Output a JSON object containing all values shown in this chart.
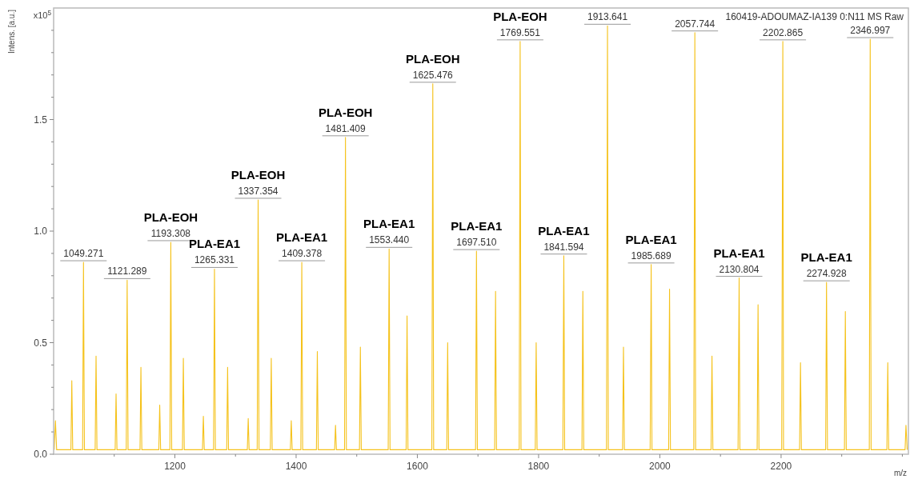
{
  "chart_data": {
    "type": "line",
    "xlabel": "m/z",
    "ylabel": "Intens. [a.u.]",
    "xlim": [
      1000,
      2410
    ],
    "ylim": [
      0,
      2.0
    ],
    "xticks": [
      {
        "value": 1100,
        "label": null
      },
      1200,
      {
        "value": 1300,
        "label": null
      },
      1400,
      {
        "value": 1500,
        "label": null
      },
      1600,
      {
        "value": 1700,
        "label": null
      },
      1800,
      {
        "value": 1900,
        "label": null
      },
      2000,
      {
        "value": 2100,
        "label": null
      },
      2200,
      {
        "value": 2300,
        "label": null
      },
      {
        "value": 2400,
        "label": null
      }
    ],
    "yticks": [
      {
        "value": 0,
        "label": "0.0"
      },
      {
        "value": 0.1,
        "label": null
      },
      {
        "value": 0.2,
        "label": null
      },
      {
        "value": 0.3,
        "label": null
      },
      {
        "value": 0.4,
        "label": null
      },
      0.5,
      {
        "value": 0.6,
        "label": null
      },
      {
        "value": 0.7,
        "label": null
      },
      {
        "value": 0.8,
        "label": null
      },
      {
        "value": 0.9,
        "label": null
      },
      {
        "value": 1,
        "label": "1.0"
      },
      {
        "value": 1.1,
        "label": null
      },
      {
        "value": 1.2,
        "label": null
      },
      {
        "value": 1.3,
        "label": null
      },
      {
        "value": 1.4,
        "label": null
      },
      1.5,
      {
        "value": 1.6,
        "label": null
      },
      {
        "value": 1.7,
        "label": null
      },
      {
        "value": 1.8,
        "label": null
      },
      {
        "value": 1.9,
        "label": null
      }
    ],
    "grid": false,
    "marker": "none",
    "line_style": "solid",
    "series": [
      {
        "color": "#f5c21b",
        "x": [
          1001,
          1003,
          1005,
          1028.5,
          1030,
          1031.5,
          1047.8,
          1049.271,
          1050.8,
          1068.5,
          1070,
          1071.5,
          1101.5,
          1103,
          1104.5,
          1119.8,
          1121.289,
          1122.8,
          1142.5,
          1144,
          1145.5,
          1173.5,
          1175,
          1176.5,
          1191.8,
          1193.308,
          1194.8,
          1212.5,
          1214,
          1215.5,
          1245.5,
          1247,
          1248.5,
          1263.8,
          1265.331,
          1266.8,
          1285.5,
          1287,
          1288.5,
          1319.5,
          1321,
          1322.5,
          1335.8,
          1337.354,
          1338.8,
          1357.5,
          1359,
          1360.5,
          1390.5,
          1392,
          1393.5,
          1407.8,
          1409.378,
          1410.8,
          1433.5,
          1435,
          1436.5,
          1463.5,
          1465,
          1466.5,
          1479.9,
          1481.409,
          1482.9,
          1504.5,
          1506,
          1507.5,
          1551.9,
          1553.44,
          1554.9,
          1581.5,
          1583,
          1584.5,
          1623.9,
          1625.476,
          1626.9,
          1648.5,
          1650,
          1651.5,
          1696,
          1697.51,
          1699,
          1727.5,
          1729,
          1730.5,
          1768,
          1769.551,
          1771,
          1794.5,
          1796,
          1797.5,
          1840,
          1841.594,
          1843,
          1871.5,
          1873,
          1874.5,
          1912,
          1913.641,
          1915,
          1938.5,
          1940,
          1941.5,
          1984,
          1985.689,
          1987,
          2014.5,
          2016,
          2017.5,
          2056,
          2057.744,
          2059,
          2084.5,
          2086,
          2087.5,
          2129,
          2130.804,
          2132,
          2160.5,
          2162,
          2163.5,
          2201,
          2202.865,
          2204,
          2230.5,
          2232,
          2233.5,
          2273.5,
          2274.928,
          2276.5,
          2304.5,
          2306,
          2307.5,
          2345.5,
          2346.997,
          2348.5,
          2374.5,
          2376,
          2377.5,
          2404.5,
          2406,
          2408
        ],
        "values": [
          0.02,
          0.15,
          0.02,
          0.02,
          0.33,
          0.02,
          0.02,
          0.86,
          0.02,
          0.02,
          0.44,
          0.02,
          0.02,
          0.27,
          0.02,
          0.02,
          0.78,
          0.02,
          0.02,
          0.39,
          0.02,
          0.02,
          0.22,
          0.02,
          0.02,
          0.95,
          0.02,
          0.02,
          0.43,
          0.02,
          0.02,
          0.17,
          0.02,
          0.02,
          0.83,
          0.02,
          0.02,
          0.39,
          0.02,
          0.02,
          0.16,
          0.02,
          0.02,
          1.14,
          0.02,
          0.02,
          0.43,
          0.02,
          0.02,
          0.15,
          0.02,
          0.02,
          0.86,
          0.02,
          0.02,
          0.46,
          0.02,
          0.02,
          0.13,
          0.02,
          0.02,
          1.42,
          0.02,
          0.02,
          0.48,
          0.02,
          0.02,
          0.92,
          0.02,
          0.02,
          0.62,
          0.02,
          0.02,
          1.66,
          0.02,
          0.02,
          0.5,
          0.02,
          0.02,
          0.91,
          0.02,
          0.02,
          0.73,
          0.02,
          0.02,
          1.85,
          0.02,
          0.02,
          0.5,
          0.02,
          0.02,
          0.89,
          0.02,
          0.02,
          0.73,
          0.02,
          0.02,
          1.92,
          0.02,
          0.02,
          0.48,
          0.02,
          0.02,
          0.85,
          0.02,
          0.02,
          0.74,
          0.02,
          0.02,
          1.89,
          0.02,
          0.02,
          0.44,
          0.02,
          0.02,
          0.79,
          0.02,
          0.02,
          0.67,
          0.02,
          0.02,
          1.85,
          0.02,
          0.02,
          0.41,
          0.02,
          0.02,
          0.77,
          0.02,
          0.02,
          0.64,
          0.02,
          0.02,
          1.86,
          0.02,
          0.02,
          0.41,
          0.02,
          0.02,
          0.13,
          0.02
        ]
      }
    ],
    "annotations": [
      "x10$^{5}$",
      "160419-ADOUMAZ-IA139 0:N11 MS Raw",
      {
        "text": "1049.271",
        "x": 1049.271,
        "y": 0.86
      },
      {
        "text": "1121.289",
        "x": 1121.289,
        "y": 0.78
      },
      {
        "text": "1193.308",
        "x": 1193.308,
        "y": 0.95
      },
      {
        "text": "PLA-EOH",
        "x": 1193.308,
        "y": 0.95
      },
      {
        "text": "1265.331",
        "x": 1265.331,
        "y": 0.83
      },
      {
        "text": "PLA-EA1",
        "x": 1265.331,
        "y": 0.83
      },
      {
        "text": "1337.354",
        "x": 1337.354,
        "y": 1.14
      },
      {
        "text": "PLA-EOH",
        "x": 1337.354,
        "y": 1.14
      },
      {
        "text": "1409.378",
        "x": 1409.378,
        "y": 0.86
      },
      {
        "text": "PLA-EA1",
        "x": 1409.378,
        "y": 0.86
      },
      {
        "text": "1481.409",
        "x": 1481.409,
        "y": 1.42
      },
      {
        "text": "PLA-EOH",
        "x": 1481.409,
        "y": 1.42
      },
      {
        "text": "1553.440",
        "x": 1553.44,
        "y": 0.92
      },
      {
        "text": "PLA-EA1",
        "x": 1553.44,
        "y": 0.92
      },
      {
        "text": "1625.476",
        "x": 1625.476,
        "y": 1.66
      },
      {
        "text": "PLA-EOH",
        "x": 1625.476,
        "y": 1.66
      },
      {
        "text": "1697.510",
        "x": 1697.51,
        "y": 0.91
      },
      {
        "text": "PLA-EA1",
        "x": 1697.51,
        "y": 0.91
      },
      {
        "text": "1769.551",
        "x": 1769.551,
        "y": 1.85
      },
      {
        "text": "PLA-EOH",
        "x": 1769.551,
        "y": 1.85
      },
      {
        "text": "1841.594",
        "x": 1841.594,
        "y": 0.89
      },
      {
        "text": "PLA-EA1",
        "x": 1841.594,
        "y": 0.89
      },
      {
        "text": "1913.641",
        "x": 1913.641,
        "y": 1.92
      },
      {
        "text": "1985.689",
        "x": 1985.689,
        "y": 0.85
      },
      {
        "text": "PLA-EA1",
        "x": 1985.689,
        "y": 0.85
      },
      {
        "text": "2057.744",
        "x": 2057.744,
        "y": 1.89
      },
      {
        "text": "2130.804",
        "x": 2130.804,
        "y": 0.79
      },
      {
        "text": "PLA-EA1",
        "x": 2130.804,
        "y": 0.79
      },
      {
        "text": "2202.865",
        "x": 2202.865,
        "y": 1.85
      },
      {
        "text": "2274.928",
        "x": 2274.928,
        "y": 0.77
      },
      {
        "text": "PLA-EA1",
        "x": 2274.928,
        "y": 0.77
      },
      {
        "text": "2346.997",
        "x": 2346.997,
        "y": 1.86
      }
    ]
  }
}
